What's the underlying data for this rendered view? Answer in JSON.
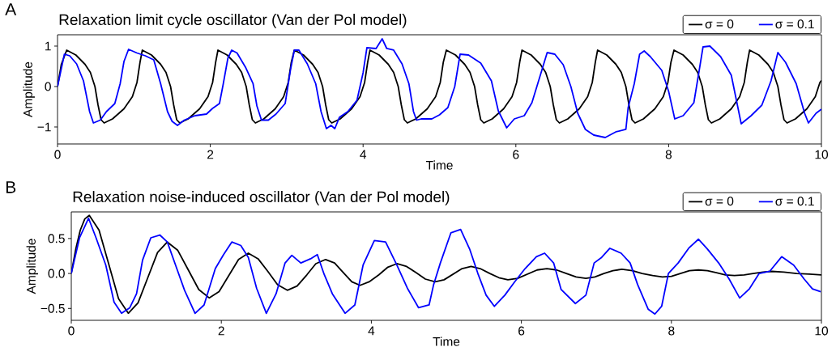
{
  "chart_data": [
    {
      "type": "line",
      "title": "Relaxation limit cycle oscillator (Van der Pol model)",
      "xlabel": "Time",
      "ylabel": "Amplitude",
      "annotations": [
        "A"
      ],
      "xlim": [
        0,
        10
      ],
      "ylim": [
        -1.42,
        1.28
      ],
      "xticks": [
        0,
        2,
        4,
        6,
        8,
        10
      ],
      "yticks": [
        {
          "value": -1,
          "label": "−1"
        },
        0,
        1
      ],
      "legend": "top right",
      "series": [
        {
          "name": "σ = 0",
          "color": "#000000",
          "x": [
            0,
            0.05,
            0.12,
            0.24,
            0.36,
            0.43,
            0.49,
            0.53,
            0.57,
            0.61,
            0.72,
            0.87,
            0.98,
            1.04,
            1.08,
            1.11,
            1.23,
            1.35,
            1.42,
            1.48,
            1.52,
            1.56,
            1.6,
            1.71,
            1.86,
            1.97,
            2.03,
            2.07,
            2.1,
            2.22,
            2.34,
            2.41,
            2.47,
            2.51,
            2.55,
            2.59,
            2.7,
            2.85,
            2.96,
            3.02,
            3.06,
            3.1,
            3.22,
            3.34,
            3.41,
            3.47,
            3.51,
            3.55,
            3.59,
            3.7,
            3.85,
            3.96,
            4.02,
            4.06,
            4.09,
            4.21,
            4.33,
            4.4,
            4.46,
            4.5,
            4.54,
            4.58,
            4.69,
            4.84,
            4.95,
            5.01,
            5.05,
            5.09,
            5.21,
            5.33,
            5.4,
            5.46,
            5.5,
            5.54,
            5.58,
            5.69,
            5.84,
            5.95,
            6.01,
            6.05,
            6.08,
            6.2,
            6.32,
            6.39,
            6.45,
            6.49,
            6.53,
            6.57,
            6.68,
            6.83,
            6.94,
            7.0,
            7.04,
            7.07,
            7.19,
            7.31,
            7.38,
            7.44,
            7.48,
            7.52,
            7.56,
            7.67,
            7.82,
            7.93,
            7.99,
            8.03,
            8.07,
            8.19,
            8.31,
            8.38,
            8.44,
            8.48,
            8.52,
            8.56,
            8.67,
            8.82,
            8.93,
            8.99,
            9.03,
            9.06,
            9.18,
            9.3,
            9.37,
            9.43,
            9.47,
            9.51,
            9.55,
            9.66,
            9.81,
            9.92,
            9.98,
            10
          ],
          "values": [
            0,
            0.55,
            0.9,
            0.78,
            0.55,
            0.35,
            0.0,
            -0.45,
            -0.82,
            -0.9,
            -0.8,
            -0.55,
            -0.25,
            0.1,
            0.6,
            0.9,
            0.78,
            0.55,
            0.35,
            0.0,
            -0.45,
            -0.82,
            -0.9,
            -0.8,
            -0.55,
            -0.25,
            0.1,
            0.6,
            0.9,
            0.78,
            0.55,
            0.35,
            0.0,
            -0.45,
            -0.82,
            -0.9,
            -0.8,
            -0.55,
            -0.25,
            0.1,
            0.6,
            0.9,
            0.78,
            0.55,
            0.35,
            0.0,
            -0.45,
            -0.82,
            -0.9,
            -0.8,
            -0.55,
            -0.25,
            0.1,
            0.6,
            0.9,
            0.78,
            0.55,
            0.35,
            0.0,
            -0.45,
            -0.82,
            -0.9,
            -0.8,
            -0.55,
            -0.25,
            0.1,
            0.6,
            0.9,
            0.78,
            0.55,
            0.35,
            0.0,
            -0.45,
            -0.82,
            -0.9,
            -0.8,
            -0.55,
            -0.25,
            0.1,
            0.6,
            0.9,
            0.78,
            0.55,
            0.35,
            0.0,
            -0.45,
            -0.82,
            -0.9,
            -0.8,
            -0.55,
            -0.25,
            0.1,
            0.6,
            0.9,
            0.78,
            0.55,
            0.35,
            0.0,
            -0.45,
            -0.82,
            -0.9,
            -0.8,
            -0.55,
            -0.25,
            0.1,
            0.6,
            0.9,
            0.78,
            0.55,
            0.35,
            0.0,
            -0.45,
            -0.82,
            -0.9,
            -0.8,
            -0.55,
            -0.25,
            0.1,
            0.6,
            0.9,
            0.78,
            0.55,
            0.35,
            0.0,
            -0.45,
            -0.82,
            -0.9,
            -0.8,
            -0.55,
            -0.25,
            0.1,
            0.15
          ]
        },
        {
          "name": "σ = 0.1",
          "color": "#0000ff",
          "x": [
            0,
            0.09,
            0.16,
            0.25,
            0.34,
            0.42,
            0.47,
            0.56,
            0.64,
            0.75,
            0.82,
            0.87,
            0.93,
            1.04,
            1.15,
            1.26,
            1.35,
            1.44,
            1.5,
            1.57,
            1.66,
            1.8,
            1.95,
            2.03,
            2.12,
            2.17,
            2.23,
            2.28,
            2.35,
            2.46,
            2.56,
            2.61,
            2.67,
            2.76,
            2.86,
            2.98,
            3.05,
            3.1,
            3.16,
            3.27,
            3.38,
            3.45,
            3.52,
            3.58,
            3.63,
            3.69,
            3.8,
            3.92,
            4.0,
            4.05,
            4.17,
            4.25,
            4.31,
            4.4,
            4.51,
            4.6,
            4.66,
            4.7,
            4.76,
            4.9,
            5.0,
            5.11,
            5.2,
            5.27,
            5.38,
            5.54,
            5.68,
            5.77,
            5.88,
            5.98,
            6.11,
            6.21,
            6.32,
            6.41,
            6.51,
            6.62,
            6.72,
            6.81,
            6.91,
            7.02,
            7.17,
            7.31,
            7.44,
            7.47,
            7.55,
            7.62,
            7.68,
            7.76,
            7.91,
            8.0,
            8.08,
            8.19,
            8.33,
            8.4,
            8.45,
            8.54,
            8.68,
            8.82,
            8.95,
            9.08,
            9.22,
            9.34,
            9.43,
            9.53,
            9.67,
            9.78,
            9.83,
            9.93,
            10
          ],
          "values": [
            0,
            0.8,
            0.76,
            0.56,
            0.14,
            -0.62,
            -0.9,
            -0.83,
            -0.62,
            -0.42,
            0.07,
            0.62,
            0.92,
            0.83,
            0.76,
            0.66,
            0.07,
            -0.62,
            -0.86,
            -0.96,
            -0.83,
            -0.72,
            -0.68,
            -0.54,
            -0.42,
            0.07,
            0.7,
            0.9,
            0.83,
            0.48,
            0.07,
            -0.48,
            -0.83,
            -0.83,
            -0.68,
            -0.42,
            0.42,
            0.9,
            0.9,
            0.56,
            0.07,
            -0.62,
            -1.04,
            -0.96,
            -1.04,
            -0.76,
            -0.62,
            -0.34,
            0.34,
            0.96,
            0.94,
            1.18,
            0.94,
            0.9,
            0.56,
            0.07,
            -0.62,
            -0.83,
            -0.8,
            -0.8,
            -0.7,
            -0.52,
            0.0,
            0.8,
            0.78,
            0.58,
            0.14,
            -0.6,
            -1.02,
            -0.8,
            -0.72,
            -0.4,
            0.28,
            0.84,
            0.8,
            0.54,
            0.0,
            -0.66,
            -1.06,
            -1.2,
            -1.26,
            -1.12,
            -1.06,
            -0.52,
            0.07,
            0.8,
            0.88,
            0.74,
            0.4,
            -0.12,
            -0.8,
            -0.72,
            -0.4,
            0.4,
            0.98,
            1.0,
            0.74,
            0.28,
            -0.92,
            -0.72,
            -0.46,
            0.14,
            0.84,
            0.6,
            0.07,
            -0.66,
            -0.9,
            -0.66,
            -0.56
          ]
        }
      ]
    },
    {
      "type": "line",
      "title": "Relaxation noise-induced oscillator (Van der Pol model)",
      "xlabel": "Time",
      "ylabel": "Amplitude",
      "annotations": [
        "B"
      ],
      "xlim": [
        0,
        10
      ],
      "ylim": [
        -0.67,
        0.88
      ],
      "xticks": [
        0,
        2,
        4,
        6,
        8,
        10
      ],
      "yticks": [
        {
          "value": -0.5,
          "label": "−0.5"
        },
        {
          "value": 0,
          "label": "0.0"
        },
        0.5
      ],
      "legend": "top right",
      "series": [
        {
          "name": "σ = 0",
          "color": "#000000",
          "x": [
            0,
            0.06,
            0.12,
            0.18,
            0.24,
            0.37,
            0.5,
            0.63,
            0.76,
            0.89,
            1.02,
            1.15,
            1.28,
            1.42,
            1.56,
            1.7,
            1.84,
            1.97,
            2.1,
            2.23,
            2.36,
            2.49,
            2.62,
            2.75,
            2.88,
            3.01,
            3.14,
            3.26,
            3.39,
            3.51,
            3.62,
            3.74,
            3.85,
            3.97,
            4.1,
            4.22,
            4.34,
            4.47,
            4.6,
            4.72,
            4.85,
            4.97,
            5.09,
            5.21,
            5.33,
            5.45,
            5.58,
            5.7,
            5.82,
            5.95,
            6.08,
            6.21,
            6.34,
            6.47,
            6.6,
            6.73,
            6.86,
            6.98,
            7.1,
            7.22,
            7.34,
            7.48,
            7.61,
            7.75,
            7.88,
            8.0,
            8.12,
            8.24,
            8.36,
            8.48,
            8.6,
            8.72,
            8.84,
            8.97,
            9.09,
            9.22,
            9.34,
            9.5,
            9.67,
            9.84,
            10
          ],
          "values": [
            0,
            0.35,
            0.62,
            0.78,
            0.83,
            0.62,
            0.13,
            -0.36,
            -0.57,
            -0.42,
            -0.06,
            0.3,
            0.45,
            0.33,
            0.05,
            -0.23,
            -0.35,
            -0.26,
            -0.03,
            0.2,
            0.29,
            0.21,
            0.03,
            -0.16,
            -0.24,
            -0.18,
            -0.02,
            0.14,
            0.2,
            0.15,
            0.02,
            -0.12,
            -0.17,
            -0.12,
            -0.02,
            0.09,
            0.14,
            0.1,
            0.01,
            -0.08,
            -0.12,
            -0.09,
            -0.01,
            0.07,
            0.1,
            0.07,
            0.0,
            -0.06,
            -0.09,
            -0.07,
            -0.01,
            0.05,
            0.07,
            0.05,
            0.0,
            -0.05,
            -0.07,
            -0.05,
            0.0,
            0.04,
            0.06,
            0.04,
            0.0,
            -0.03,
            -0.05,
            -0.04,
            0.0,
            0.04,
            0.05,
            0.04,
            0.01,
            -0.02,
            -0.03,
            -0.02,
            0.0,
            0.02,
            0.03,
            0.02,
            0.0,
            -0.01,
            -0.02
          ]
        },
        {
          "name": "σ = 0.1",
          "color": "#0000ff",
          "x": [
            0,
            0.11,
            0.23,
            0.33,
            0.46,
            0.57,
            0.67,
            0.78,
            0.87,
            0.95,
            1.06,
            1.18,
            1.28,
            1.39,
            1.51,
            1.65,
            1.77,
            1.92,
            2.03,
            2.14,
            2.26,
            2.36,
            2.47,
            2.6,
            2.73,
            2.85,
            2.94,
            3.06,
            3.19,
            3.28,
            3.37,
            3.48,
            3.65,
            3.78,
            3.89,
            4.04,
            4.19,
            4.34,
            4.48,
            4.63,
            4.77,
            4.83,
            4.92,
            5.06,
            5.19,
            5.31,
            5.42,
            5.53,
            5.64,
            5.78,
            5.91,
            6.05,
            6.2,
            6.31,
            6.43,
            6.53,
            6.72,
            6.86,
            6.97,
            7.07,
            7.18,
            7.33,
            7.45,
            7.55,
            7.69,
            7.78,
            7.87,
            7.96,
            8.09,
            8.23,
            8.36,
            8.48,
            8.63,
            8.77,
            8.91,
            9.04,
            9.17,
            9.31,
            9.47,
            9.63,
            9.77,
            9.88,
            9.99
          ],
          "values": [
            0,
            0.51,
            0.79,
            0.51,
            0.12,
            -0.41,
            -0.57,
            -0.49,
            -0.29,
            0.19,
            0.51,
            0.55,
            0.45,
            0.12,
            -0.24,
            -0.57,
            -0.45,
            0.07,
            0.27,
            0.45,
            0.4,
            0.23,
            -0.21,
            -0.57,
            -0.29,
            0.15,
            0.26,
            0.15,
            0.21,
            0.27,
            -0.01,
            -0.29,
            -0.57,
            -0.45,
            0.12,
            0.47,
            0.45,
            0.12,
            -0.21,
            -0.49,
            -0.45,
            -0.16,
            0.15,
            0.58,
            0.63,
            0.35,
            0.0,
            -0.31,
            -0.47,
            -0.31,
            -0.12,
            0.07,
            0.24,
            0.29,
            0.15,
            -0.23,
            -0.43,
            -0.31,
            0.15,
            0.23,
            0.36,
            0.29,
            0.15,
            -0.16,
            -0.51,
            -0.58,
            -0.47,
            0.0,
            0.15,
            0.36,
            0.49,
            0.35,
            0.15,
            -0.08,
            -0.35,
            -0.22,
            0.0,
            0.03,
            0.24,
            0.12,
            -0.08,
            -0.22,
            -0.26
          ]
        }
      ]
    }
  ]
}
